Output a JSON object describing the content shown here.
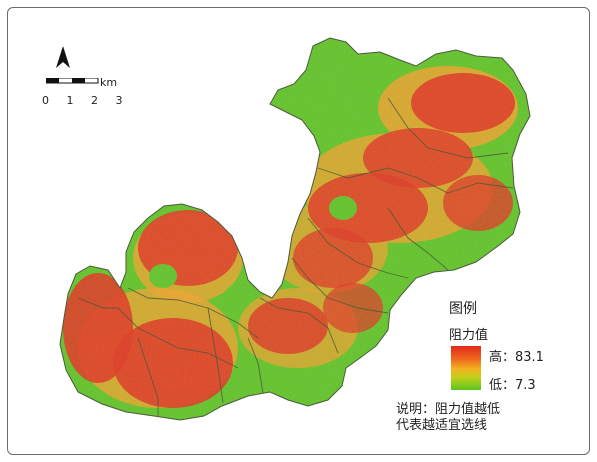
{
  "map": {
    "scale_unit": "km",
    "scale_ticks": "0 1 2 3",
    "legend_title": "图例",
    "legend_subtitle": "阻力值",
    "legend_high": "高：83.1",
    "legend_low": "低：7.3",
    "note_line1": "说明：阻力值越低",
    "note_line2": "代表越适宜选线",
    "colors": {
      "high": "#e02a1a",
      "mid": "#f3b21f",
      "low": "#5dc41f",
      "border": "#4b5a3c"
    },
    "icons": [
      "north-arrow-icon",
      "scale-bar-icon"
    ]
  }
}
